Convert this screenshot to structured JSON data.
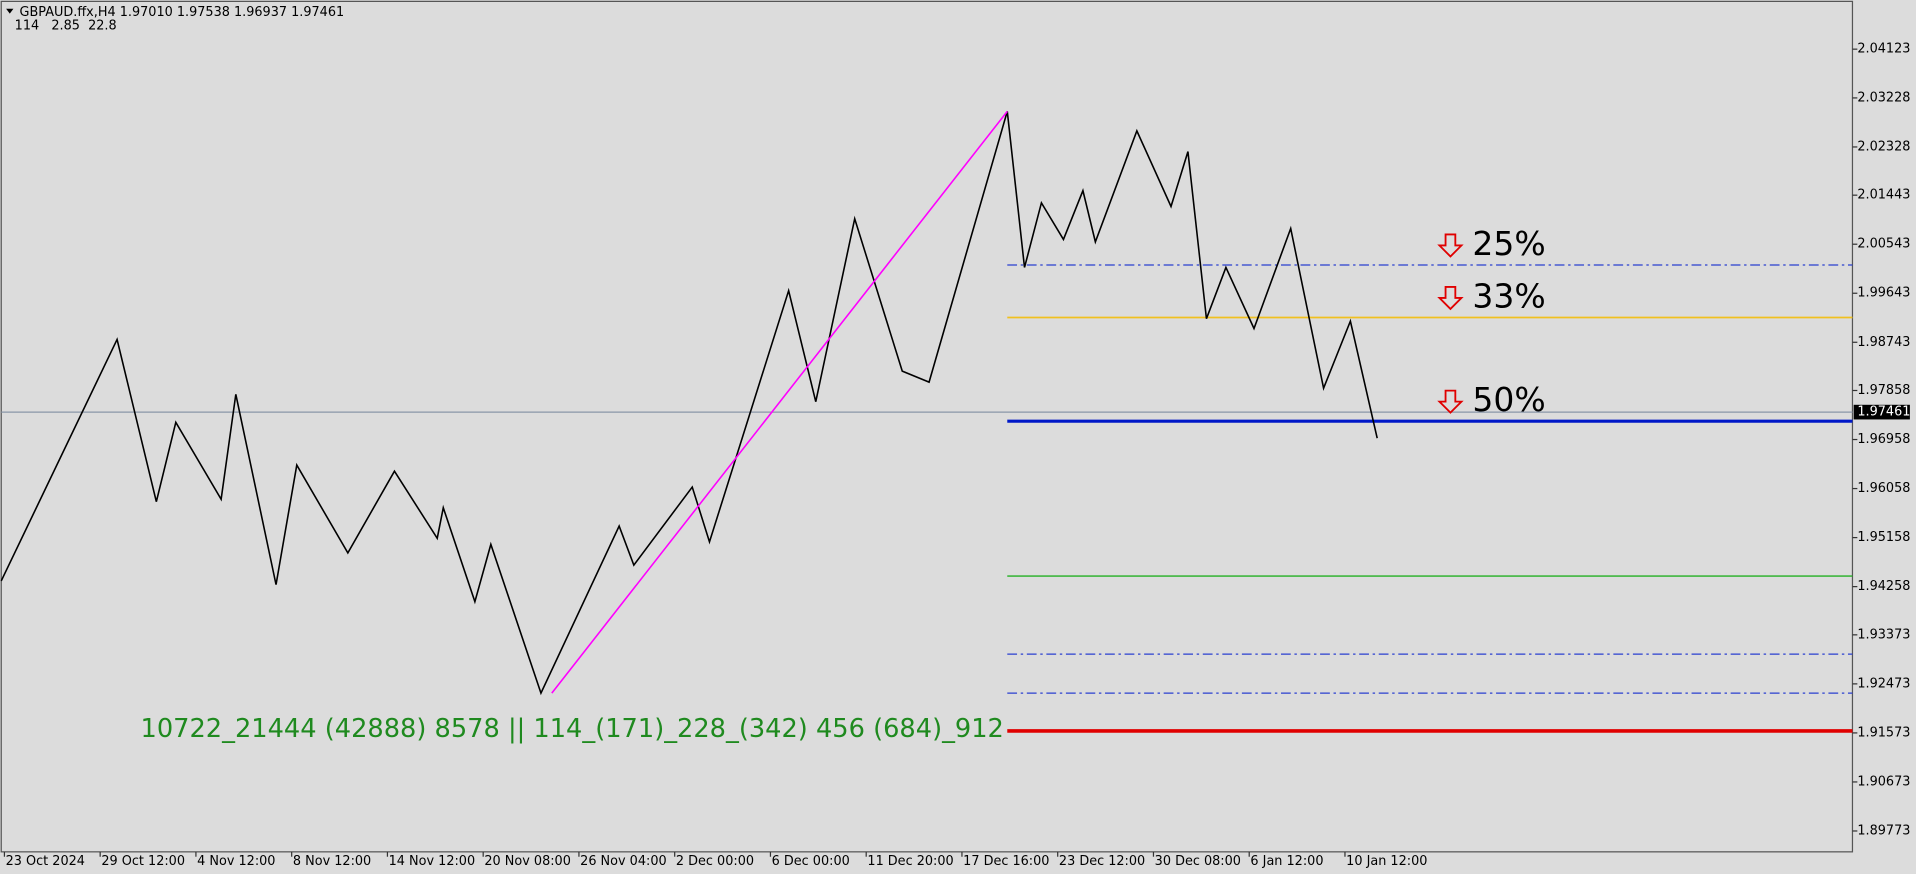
{
  "chart_data": {
    "type": "line",
    "title": "GBPAUD.ffx,H4  1.97010 1.97538 1.96937 1.97461",
    "subtitle": "114   2.85  22.8",
    "annotation": "10722_21444 (42888) 8578 || 114_(171)_228_(342) 456 (684)_912",
    "annotation_color": "#1f8a1f",
    "background": "#dcdcdc",
    "xlim": [
      0,
      580
    ],
    "xticks": [
      {
        "value": 1,
        "label": "23 Oct 2024"
      },
      {
        "value": 31,
        "label": "29 Oct 12:00"
      },
      {
        "value": 61,
        "label": "4 Nov 12:00"
      },
      {
        "value": 91,
        "label": "8 Nov 12:00"
      },
      {
        "value": 121,
        "label": "14 Nov 12:00"
      },
      {
        "value": 151,
        "label": "20 Nov 08:00"
      },
      {
        "value": 181,
        "label": "26 Nov 04:00"
      },
      {
        "value": 211,
        "label": "2 Dec 00:00"
      },
      {
        "value": 241,
        "label": "6 Dec 00:00"
      },
      {
        "value": 271,
        "label": "11 Dec 20:00"
      },
      {
        "value": 301,
        "label": "17 Dec 16:00"
      },
      {
        "value": 331,
        "label": "23 Dec 12:00"
      },
      {
        "value": 361,
        "label": "30 Dec 08:00"
      },
      {
        "value": 391,
        "label": "6 Jan 12:00"
      },
      {
        "value": 421,
        "label": "10 Jan 12:00"
      }
    ],
    "ylim": [
      1.8939,
      2.05
    ],
    "yticks": [
      2.04123,
      2.03228,
      2.02328,
      2.01443,
      2.00543,
      1.99643,
      1.98743,
      1.97858,
      1.96958,
      1.96058,
      1.95158,
      1.94258,
      1.93373,
      1.92473,
      1.91573,
      1.90673,
      1.89773
    ],
    "series": [
      {
        "color": "#000000",
        "x": [
          0,
          36.3,
          48.6,
          54.7,
          68.9,
          73.5,
          86.1,
          92.6,
          108.6,
          123.2,
          136.6,
          138.5,
          148.4,
          153.4,
          169.1,
          193.6,
          198.2,
          216.5,
          221.9,
          246.7,
          255.2,
          267.4,
          282.3,
          290.7,
          315.2,
          320.6,
          325.9,
          332.8,
          338.9,
          342.8,
          355.8,
          366.5,
          371.8,
          377.6,
          383.7,
          392.5,
          404.0,
          414.3,
          422.7,
          431.1
        ],
        "values": [
          1.94362,
          1.98795,
          1.95818,
          1.97273,
          1.95862,
          1.97788,
          1.94295,
          1.96489,
          1.94877,
          1.96377,
          1.95146,
          1.95706,
          1.93982,
          1.95034,
          1.92303,
          1.9537,
          1.94653,
          1.96086,
          1.95079,
          1.9969,
          1.97653,
          2.01011,
          1.98213,
          1.98011,
          2.02981,
          2.00116,
          2.01302,
          2.00631,
          2.01526,
          2.00586,
          2.02623,
          2.01235,
          2.02243,
          1.99176,
          2.00116,
          1.98996,
          2.00832,
          1.979,
          1.99131,
          1.96982
        ]
      },
      {
        "color": "#ff00ff",
        "x": [
          172.5,
          315.2
        ],
        "values": [
          1.92303,
          2.02981
        ]
      }
    ],
    "level_start": 315.2,
    "levels": [
      {
        "value": 2.00161,
        "color": "#2a3fd0",
        "style": "dashdot",
        "width": 1,
        "label": "25%"
      },
      {
        "value": 1.99198,
        "color": "#f0c020",
        "style": "solid",
        "width": 1.5,
        "label": "33%"
      },
      {
        "value": 1.97295,
        "color": "#0018c8",
        "style": "solid",
        "width": 2.5,
        "label": "50%"
      },
      {
        "value": 1.94452,
        "color": "#22b022",
        "style": "solid",
        "width": 1.2
      },
      {
        "value": 1.93019,
        "color": "#2a3fd0",
        "style": "dashdot",
        "width": 1
      },
      {
        "value": 1.92303,
        "color": "#2a3fd0",
        "style": "dashdot",
        "width": 1
      },
      {
        "value": 1.91609,
        "color": "#e00000",
        "style": "solid",
        "width": 3
      }
    ],
    "last_price": 1.97461,
    "last_price_color": "#8a96a8"
  }
}
